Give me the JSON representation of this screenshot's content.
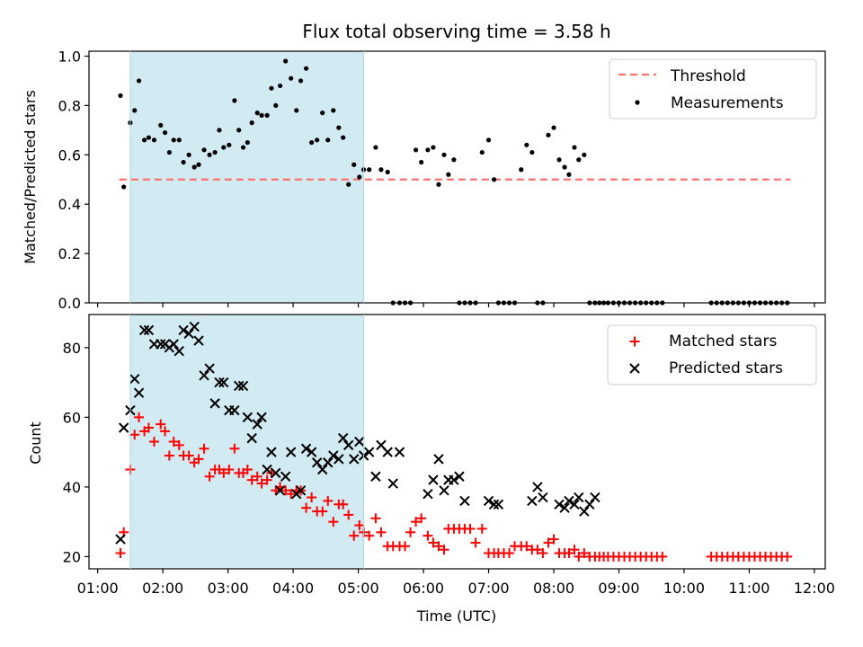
{
  "colors": {
    "shade": "#add8e6",
    "threshold": "#ff7070",
    "measurement": "#000000",
    "matched": "#ff0000",
    "predicted": "#000000"
  },
  "chart_data": [
    {
      "type": "scatter",
      "title": "Flux total observing time = 3.58 h",
      "ylabel": "Matched/Predicted stars",
      "xlabel": "",
      "xlim": [
        "00:52",
        "12:10"
      ],
      "ylim": [
        0,
        1.02
      ],
      "yticks": [
        0,
        0.2,
        0.4,
        0.6,
        0.8,
        1.0
      ],
      "ytick_labels": [
        "0.0",
        "0.2",
        "0.4",
        "0.6",
        "0.8",
        "1.0"
      ],
      "shaded_interval": [
        "01:30",
        "05:05"
      ],
      "legend_position": "top-right",
      "threshold": {
        "name": "Threshold",
        "value": 0.5,
        "x_start": "01:20",
        "x_end": "11:38"
      },
      "series": [
        {
          "name": "Measurements",
          "x": [
            "01:21",
            "01:24",
            "01:30",
            "01:34",
            "01:38",
            "01:43",
            "01:47",
            "01:52",
            "01:58",
            "02:02",
            "02:06",
            "02:10",
            "02:15",
            "02:19",
            "02:24",
            "02:29",
            "02:33",
            "02:38",
            "02:43",
            "02:48",
            "02:52",
            "02:56",
            "03:01",
            "03:06",
            "03:10",
            "03:14",
            "03:18",
            "03:22",
            "03:27",
            "03:31",
            "03:36",
            "03:40",
            "03:44",
            "03:48",
            "03:53",
            "03:58",
            "04:03",
            "04:07",
            "04:12",
            "04:17",
            "04:22",
            "04:27",
            "04:32",
            "04:37",
            "04:42",
            "04:46",
            "04:51",
            "04:56",
            "05:01",
            "05:05",
            "05:10",
            "05:16",
            "05:21",
            "05:27",
            "05:32",
            "05:38",
            "05:43",
            "05:48",
            "05:53",
            "05:58",
            "06:04",
            "06:09",
            "06:14",
            "06:19",
            "06:23",
            "06:28",
            "06:33",
            "06:38",
            "06:43",
            "06:48",
            "06:54",
            "07:00",
            "07:05",
            "07:09",
            "07:14",
            "07:19",
            "07:24",
            "07:30",
            "07:35",
            "07:40",
            "07:45",
            "07:50",
            "07:55",
            "08:00",
            "08:05",
            "08:10",
            "08:14",
            "08:19",
            "08:23",
            "08:28",
            "08:33",
            "08:38",
            "08:42",
            "08:46",
            "08:50",
            "08:55",
            "09:00",
            "09:05",
            "09:10",
            "09:15",
            "09:20",
            "09:25",
            "09:30",
            "09:35",
            "09:40",
            "10:25",
            "10:30",
            "10:35",
            "10:40",
            "10:45",
            "10:50",
            "10:55",
            "11:00",
            "11:05",
            "11:10",
            "11:15",
            "11:20",
            "11:25",
            "11:30",
            "11:35"
          ],
          "values": [
            0.84,
            0.47,
            0.73,
            0.78,
            0.9,
            0.66,
            0.67,
            0.66,
            0.72,
            0.69,
            0.61,
            0.66,
            0.66,
            0.57,
            0.6,
            0.55,
            0.56,
            0.62,
            0.6,
            0.61,
            0.7,
            0.63,
            0.64,
            0.82,
            0.7,
            0.63,
            0.65,
            0.73,
            0.77,
            0.76,
            0.76,
            0.87,
            0.8,
            0.88,
            0.98,
            0.91,
            0.78,
            0.9,
            0.95,
            0.65,
            0.66,
            0.77,
            0.66,
            0.78,
            0.71,
            0.67,
            0.48,
            0.56,
            0.51,
            0.54,
            0.54,
            0.63,
            0.54,
            0.53,
            0.0,
            0.0,
            0.0,
            0.0,
            0.62,
            0.57,
            0.62,
            0.63,
            0.48,
            0.6,
            0.52,
            0.58,
            0.0,
            0.0,
            0.0,
            0.0,
            0.61,
            0.66,
            0.5,
            0.0,
            0.0,
            0.0,
            0.0,
            0.54,
            0.64,
            0.61,
            0.0,
            0.0,
            0.68,
            0.71,
            0.58,
            0.55,
            0.52,
            0.63,
            0.58,
            0.6,
            0.0,
            0.0,
            0.0,
            0.0,
            0.0,
            0.0,
            0.0,
            0.0,
            0.0,
            0.0,
            0.0,
            0.0,
            0.0,
            0.0,
            0.0,
            0.0,
            0.0,
            0.0,
            0.0,
            0.0,
            0.0,
            0.0,
            0.0,
            0.0,
            0.0,
            0.0,
            0.0,
            0.0,
            0.0,
            0.0
          ]
        }
      ]
    },
    {
      "type": "scatter",
      "title": "",
      "xlabel": "Time (UTC)",
      "ylabel": "Count",
      "xlim": [
        "00:52",
        "12:10"
      ],
      "xticks": [
        "01:00",
        "02:00",
        "03:00",
        "04:00",
        "05:00",
        "06:00",
        "07:00",
        "08:00",
        "09:00",
        "10:00",
        "11:00",
        "12:00"
      ],
      "ylim": [
        16.5,
        89.5
      ],
      "yticks": [
        20,
        40,
        60,
        80
      ],
      "ytick_labels": [
        "20",
        "40",
        "60",
        "80"
      ],
      "shaded_interval": [
        "01:30",
        "05:05"
      ],
      "legend_position": "top-right",
      "series": [
        {
          "name": "Matched stars",
          "marker": "plus",
          "x": [
            "01:21",
            "01:24",
            "01:30",
            "01:34",
            "01:38",
            "01:43",
            "01:47",
            "01:52",
            "01:58",
            "02:02",
            "02:06",
            "02:10",
            "02:15",
            "02:19",
            "02:24",
            "02:29",
            "02:33",
            "02:38",
            "02:43",
            "02:48",
            "02:52",
            "02:56",
            "03:01",
            "03:06",
            "03:10",
            "03:14",
            "03:18",
            "03:22",
            "03:27",
            "03:31",
            "03:36",
            "03:40",
            "03:44",
            "03:48",
            "03:53",
            "03:58",
            "04:03",
            "04:07",
            "04:12",
            "04:17",
            "04:22",
            "04:27",
            "04:32",
            "04:37",
            "04:42",
            "04:46",
            "04:51",
            "04:56",
            "05:01",
            "05:05",
            "05:10",
            "05:16",
            "05:21",
            "05:27",
            "05:32",
            "05:38",
            "05:43",
            "05:48",
            "05:53",
            "05:58",
            "06:04",
            "06:09",
            "06:14",
            "06:19",
            "06:23",
            "06:28",
            "06:33",
            "06:38",
            "06:43",
            "06:48",
            "06:54",
            "07:00",
            "07:05",
            "07:09",
            "07:14",
            "07:19",
            "07:24",
            "07:30",
            "07:35",
            "07:40",
            "07:45",
            "07:50",
            "07:55",
            "08:00",
            "08:05",
            "08:10",
            "08:14",
            "08:19",
            "08:23",
            "08:28",
            "08:33",
            "08:38",
            "08:42",
            "08:46",
            "08:50",
            "08:55",
            "09:00",
            "09:05",
            "09:10",
            "09:15",
            "09:20",
            "09:25",
            "09:30",
            "09:35",
            "09:40",
            "10:25",
            "10:30",
            "10:35",
            "10:40",
            "10:45",
            "10:50",
            "10:55",
            "11:00",
            "11:05",
            "11:10",
            "11:15",
            "11:20",
            "11:25",
            "11:30",
            "11:35"
          ],
          "values": [
            21,
            27,
            45,
            55,
            60,
            56,
            57,
            53,
            58,
            56,
            49,
            53,
            52,
            49,
            49,
            47,
            48,
            51,
            43,
            45,
            45,
            44,
            45,
            51,
            44,
            44,
            45,
            42,
            43,
            41,
            42,
            44,
            39,
            40,
            39,
            38,
            39,
            39,
            34,
            37,
            33,
            33,
            36,
            30,
            35,
            35,
            32,
            26,
            29,
            27,
            26,
            31,
            27,
            23,
            23,
            23,
            23,
            27,
            30,
            31,
            26,
            24,
            23,
            22,
            28,
            28,
            28,
            28,
            28,
            24,
            28,
            21,
            21,
            21,
            21,
            21,
            23,
            23,
            23,
            22,
            22,
            21,
            24,
            25,
            21,
            21,
            21,
            22,
            20,
            21,
            20,
            20,
            20,
            20,
            20,
            20,
            20,
            20,
            20,
            20,
            20,
            20,
            20,
            20,
            20,
            20,
            20,
            20,
            20,
            20,
            20,
            20,
            20,
            20,
            20,
            20,
            20,
            20,
            20,
            20
          ]
        },
        {
          "name": "Predicted stars",
          "marker": "x",
          "x": [
            "01:21",
            "01:24",
            "01:30",
            "01:34",
            "01:38",
            "01:43",
            "01:47",
            "01:52",
            "01:58",
            "02:02",
            "02:06",
            "02:10",
            "02:15",
            "02:19",
            "02:24",
            "02:29",
            "02:33",
            "02:38",
            "02:43",
            "02:48",
            "02:52",
            "02:56",
            "03:01",
            "03:06",
            "03:10",
            "03:14",
            "03:18",
            "03:22",
            "03:27",
            "03:31",
            "03:36",
            "03:40",
            "03:44",
            "03:48",
            "03:53",
            "03:58",
            "04:03",
            "04:07",
            "04:12",
            "04:17",
            "04:22",
            "04:27",
            "04:32",
            "04:37",
            "04:42",
            "04:46",
            "04:51",
            "04:56",
            "05:01",
            "05:05",
            "05:10",
            "05:16",
            "05:21",
            "05:27",
            "05:32",
            "05:38",
            "06:04",
            "06:09",
            "06:14",
            "06:19",
            "06:23",
            "06:28",
            "06:33",
            "06:38",
            "07:00",
            "07:05",
            "07:09",
            "07:40",
            "07:45",
            "07:50",
            "08:05",
            "08:10",
            "08:14",
            "08:19",
            "08:23",
            "08:28",
            "08:33",
            "08:38"
          ],
          "values": [
            25,
            57,
            62,
            71,
            67,
            85,
            85,
            81,
            81,
            81,
            80,
            81,
            79,
            85,
            84,
            86,
            82,
            72,
            74,
            64,
            70,
            70,
            62,
            62,
            69,
            69,
            60,
            54,
            58,
            60,
            45,
            50,
            44,
            39,
            43,
            50,
            38,
            39,
            51,
            50,
            47,
            45,
            47,
            49,
            48,
            54,
            52,
            48,
            53,
            49,
            50,
            43,
            52,
            50,
            41,
            50,
            38,
            42,
            48,
            39,
            42,
            42,
            43,
            36,
            36,
            35,
            35,
            36,
            40,
            37,
            35,
            34,
            36,
            35,
            37,
            33,
            35,
            37
          ]
        }
      ]
    }
  ]
}
